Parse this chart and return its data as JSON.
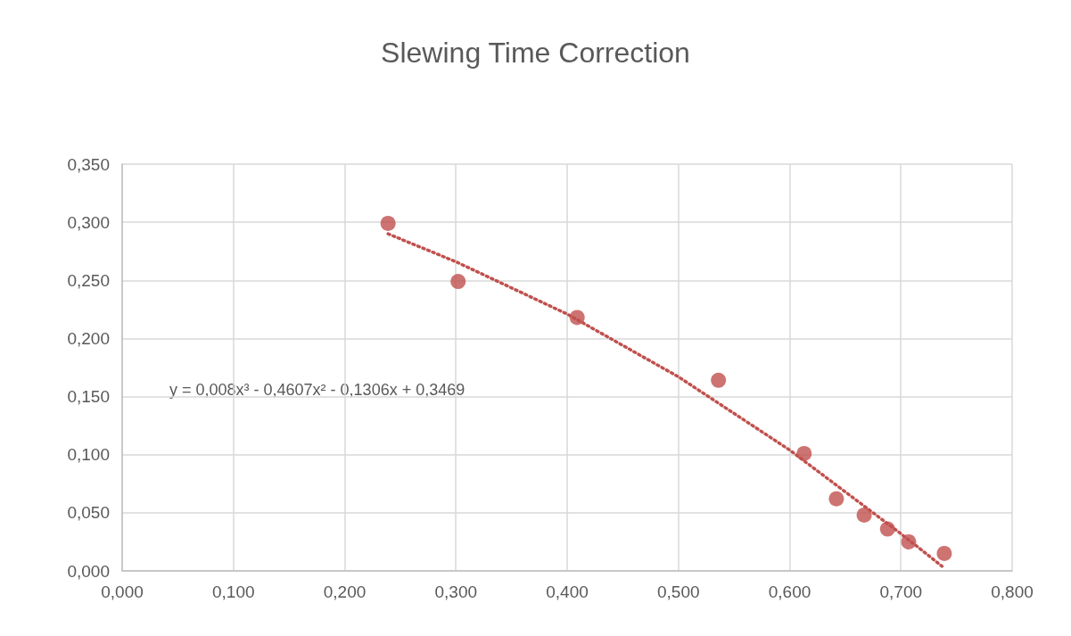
{
  "chart_data": {
    "type": "scatter",
    "title": "Slewing Time Correction",
    "xlim": [
      0,
      0.8
    ],
    "xticks": [
      {
        "value": 0,
        "label": "0,000"
      },
      {
        "value": 0.1,
        "label": "0,100"
      },
      {
        "value": 0.2,
        "label": "0,200"
      },
      {
        "value": 0.3,
        "label": "0,300"
      },
      {
        "value": 0.4,
        "label": "0,400"
      },
      {
        "value": 0.5,
        "label": "0,500"
      },
      {
        "value": 0.6,
        "label": "0,600"
      },
      {
        "value": 0.7,
        "label": "0,700"
      },
      {
        "value": 0.8,
        "label": "0,800"
      }
    ],
    "ylim": [
      0,
      0.35
    ],
    "yticks": [
      {
        "value": 0,
        "label": "0,000"
      },
      {
        "value": 0.05,
        "label": "0,050"
      },
      {
        "value": 0.1,
        "label": "0,100"
      },
      {
        "value": 0.15,
        "label": "0,150"
      },
      {
        "value": 0.2,
        "label": "0,200"
      },
      {
        "value": 0.25,
        "label": "0,250"
      },
      {
        "value": 0.3,
        "label": "0,300"
      },
      {
        "value": 0.35,
        "label": "0,350"
      }
    ],
    "grid": true,
    "series": [
      {
        "color": "#c0504d",
        "marker": "circle",
        "x": [
          0.239,
          0.302,
          0.409,
          0.536,
          0.613,
          0.642,
          0.667,
          0.688,
          0.707,
          0.739
        ],
        "values": [
          0.299,
          0.249,
          0.218,
          0.164,
          0.101,
          0.062,
          0.048,
          0.036,
          0.025,
          0.015
        ]
      },
      {
        "type": "line",
        "color": "#c0504d",
        "marker": "none",
        "line_style": "dotted",
        "x": [
          0.239,
          0.3,
          0.4,
          0.5,
          0.6,
          0.7,
          0.737
        ],
        "values": [
          0.29,
          0.266,
          0.221,
          0.167,
          0.104,
          0.032,
          0.004
        ]
      }
    ],
    "annotations": [
      "y = 0,008x³ - 0,4607x² - 0,1306x + 0,3469"
    ]
  }
}
